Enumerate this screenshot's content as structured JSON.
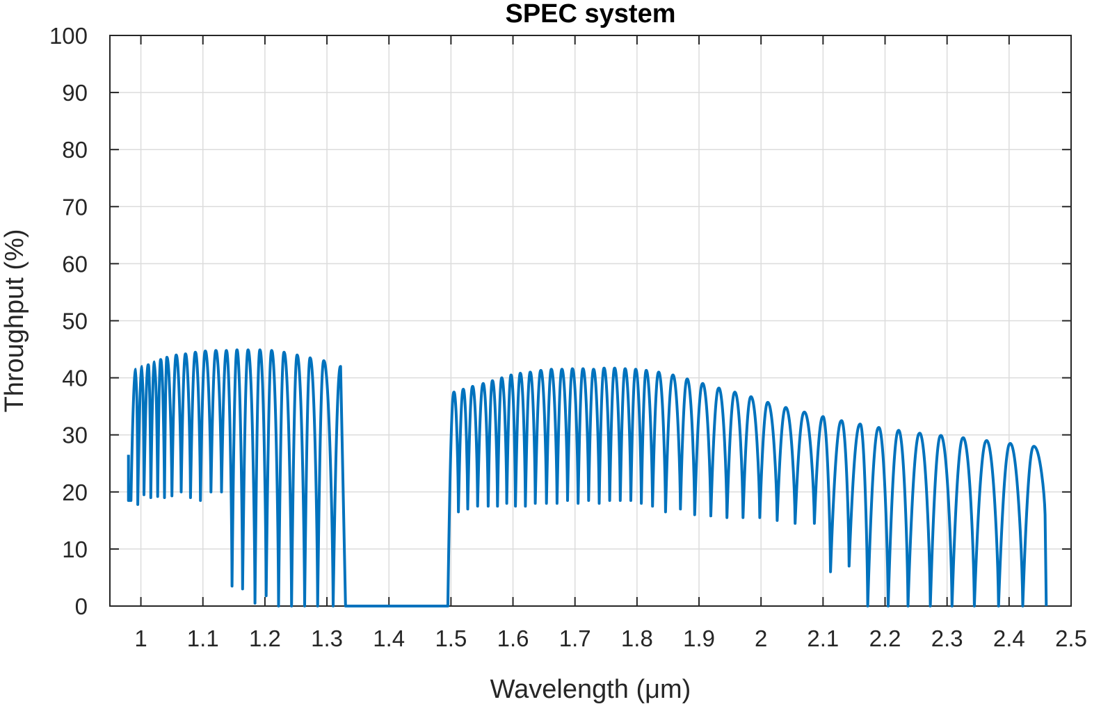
{
  "chart_data": {
    "type": "line",
    "title": "SPEC system",
    "xlabel": "Wavelength (μm)",
    "ylabel": "Throughput (%)",
    "xlim": [
      0.95,
      2.5
    ],
    "ylim": [
      0,
      100
    ],
    "xticks": [
      1,
      1.1,
      1.2,
      1.3,
      1.4,
      1.5,
      1.6,
      1.7,
      1.8,
      1.9,
      2,
      2.1,
      2.2,
      2.3,
      2.4,
      2.5
    ],
    "xtick_labels": [
      "1",
      "1.1",
      "1.2",
      "1.3",
      "1.4",
      "1.5",
      "1.6",
      "1.7",
      "1.8",
      "1.9",
      "2",
      "2.1",
      "2.2",
      "2.3",
      "2.4",
      "2.5"
    ],
    "yticks": [
      0,
      10,
      20,
      30,
      40,
      50,
      60,
      70,
      80,
      90,
      100
    ],
    "ytick_labels": [
      "0",
      "10",
      "20",
      "30",
      "40",
      "50",
      "60",
      "70",
      "80",
      "90",
      "100"
    ],
    "grid": true,
    "line_color": "#0072bd",
    "grid_color": "#dcdcdc",
    "axis_color": "#262626",
    "series": [
      {
        "segments": [
          {
            "x_start": 0.98,
            "x_end": 1.33,
            "dip_floor": 20,
            "gap_fill": 0,
            "x_peaks": [
              0.992,
              1.002,
              1.012,
              1.022,
              1.032,
              1.042,
              1.057,
              1.072,
              1.088,
              1.104,
              1.121,
              1.138,
              1.155,
              1.173,
              1.192,
              1.211,
              1.231,
              1.252,
              1.273,
              1.295,
              1.322
            ],
            "peaks": [
              41.5,
              42.0,
              42.3,
              42.8,
              43.2,
              43.6,
              44.0,
              44.2,
              44.5,
              44.7,
              44.8,
              44.8,
              44.9,
              44.9,
              44.9,
              44.8,
              44.5,
              44.0,
              43.5,
              43.0,
              42.0
            ],
            "x_dips": [
              0.984,
              0.995,
              1.005,
              1.016,
              1.027,
              1.038,
              1.05,
              1.065,
              1.08,
              1.096,
              1.113,
              1.13,
              1.147,
              1.164,
              1.184,
              1.202,
              1.222,
              1.243,
              1.264,
              1.285,
              1.31
            ],
            "dips": [
              18.5,
              17.8,
              19.5,
              19.0,
              19.2,
              19.0,
              19.3,
              20.0,
              19.0,
              18.5,
              20.0,
              20.0,
              3.5,
              3.0,
              0.5,
              1.8,
              0.0,
              0.0,
              0.0,
              0.0,
              0.0
            ]
          },
          {
            "x_start": 1.33,
            "x_end": 1.495,
            "flat": 0
          },
          {
            "x_start": 1.495,
            "x_end": 2.46,
            "dip_floor": 16,
            "gap_fill": 0,
            "x_peaks": [
              1.505,
              1.52,
              1.535,
              1.552,
              1.567,
              1.582,
              1.597,
              1.612,
              1.628,
              1.645,
              1.662,
              1.679,
              1.696,
              1.713,
              1.73,
              1.747,
              1.764,
              1.781,
              1.798,
              1.815,
              1.835,
              1.858,
              1.881,
              1.906,
              1.932,
              1.958,
              1.984,
              2.011,
              2.04,
              2.07,
              2.1,
              2.13,
              2.16,
              2.19,
              2.222,
              2.256,
              2.29,
              2.326,
              2.364,
              2.402,
              2.44
            ],
            "peaks": [
              37.5,
              38.0,
              38.5,
              39.0,
              39.5,
              40.0,
              40.5,
              40.8,
              41.0,
              41.3,
              41.5,
              41.5,
              41.6,
              41.6,
              41.5,
              41.7,
              41.7,
              41.6,
              41.5,
              41.3,
              41.0,
              40.5,
              39.8,
              39.0,
              38.2,
              37.5,
              36.7,
              35.7,
              34.8,
              34.0,
              33.2,
              32.5,
              31.9,
              31.3,
              30.8,
              30.3,
              29.9,
              29.5,
              29.0,
              28.5,
              28.0
            ],
            "x_dips": [
              1.512,
              1.527,
              1.543,
              1.56,
              1.575,
              1.59,
              1.604,
              1.62,
              1.636,
              1.654,
              1.671,
              1.688,
              1.705,
              1.722,
              1.739,
              1.756,
              1.773,
              1.79,
              1.807,
              1.825,
              1.846,
              1.87,
              1.893,
              1.919,
              1.945,
              1.971,
              1.998,
              2.026,
              2.055,
              2.086,
              2.112,
              2.142,
              2.172,
              2.205,
              2.237,
              2.273,
              2.308,
              2.344,
              2.383,
              2.422,
              2.458
            ],
            "dips": [
              16.5,
              17.0,
              17.5,
              17.5,
              17.5,
              18.0,
              17.5,
              17.5,
              18.0,
              18.0,
              18.0,
              18.5,
              18.0,
              18.5,
              18.0,
              18.5,
              18.5,
              18.5,
              18.0,
              17.5,
              16.5,
              17.0,
              16.0,
              15.8,
              15.5,
              15.5,
              15.5,
              15.0,
              14.5,
              14.5,
              6.0,
              7.0,
              0.0,
              0.0,
              0.0,
              0.0,
              0.0,
              0.0,
              0.0,
              0.0,
              16.0
            ]
          }
        ]
      }
    ]
  }
}
